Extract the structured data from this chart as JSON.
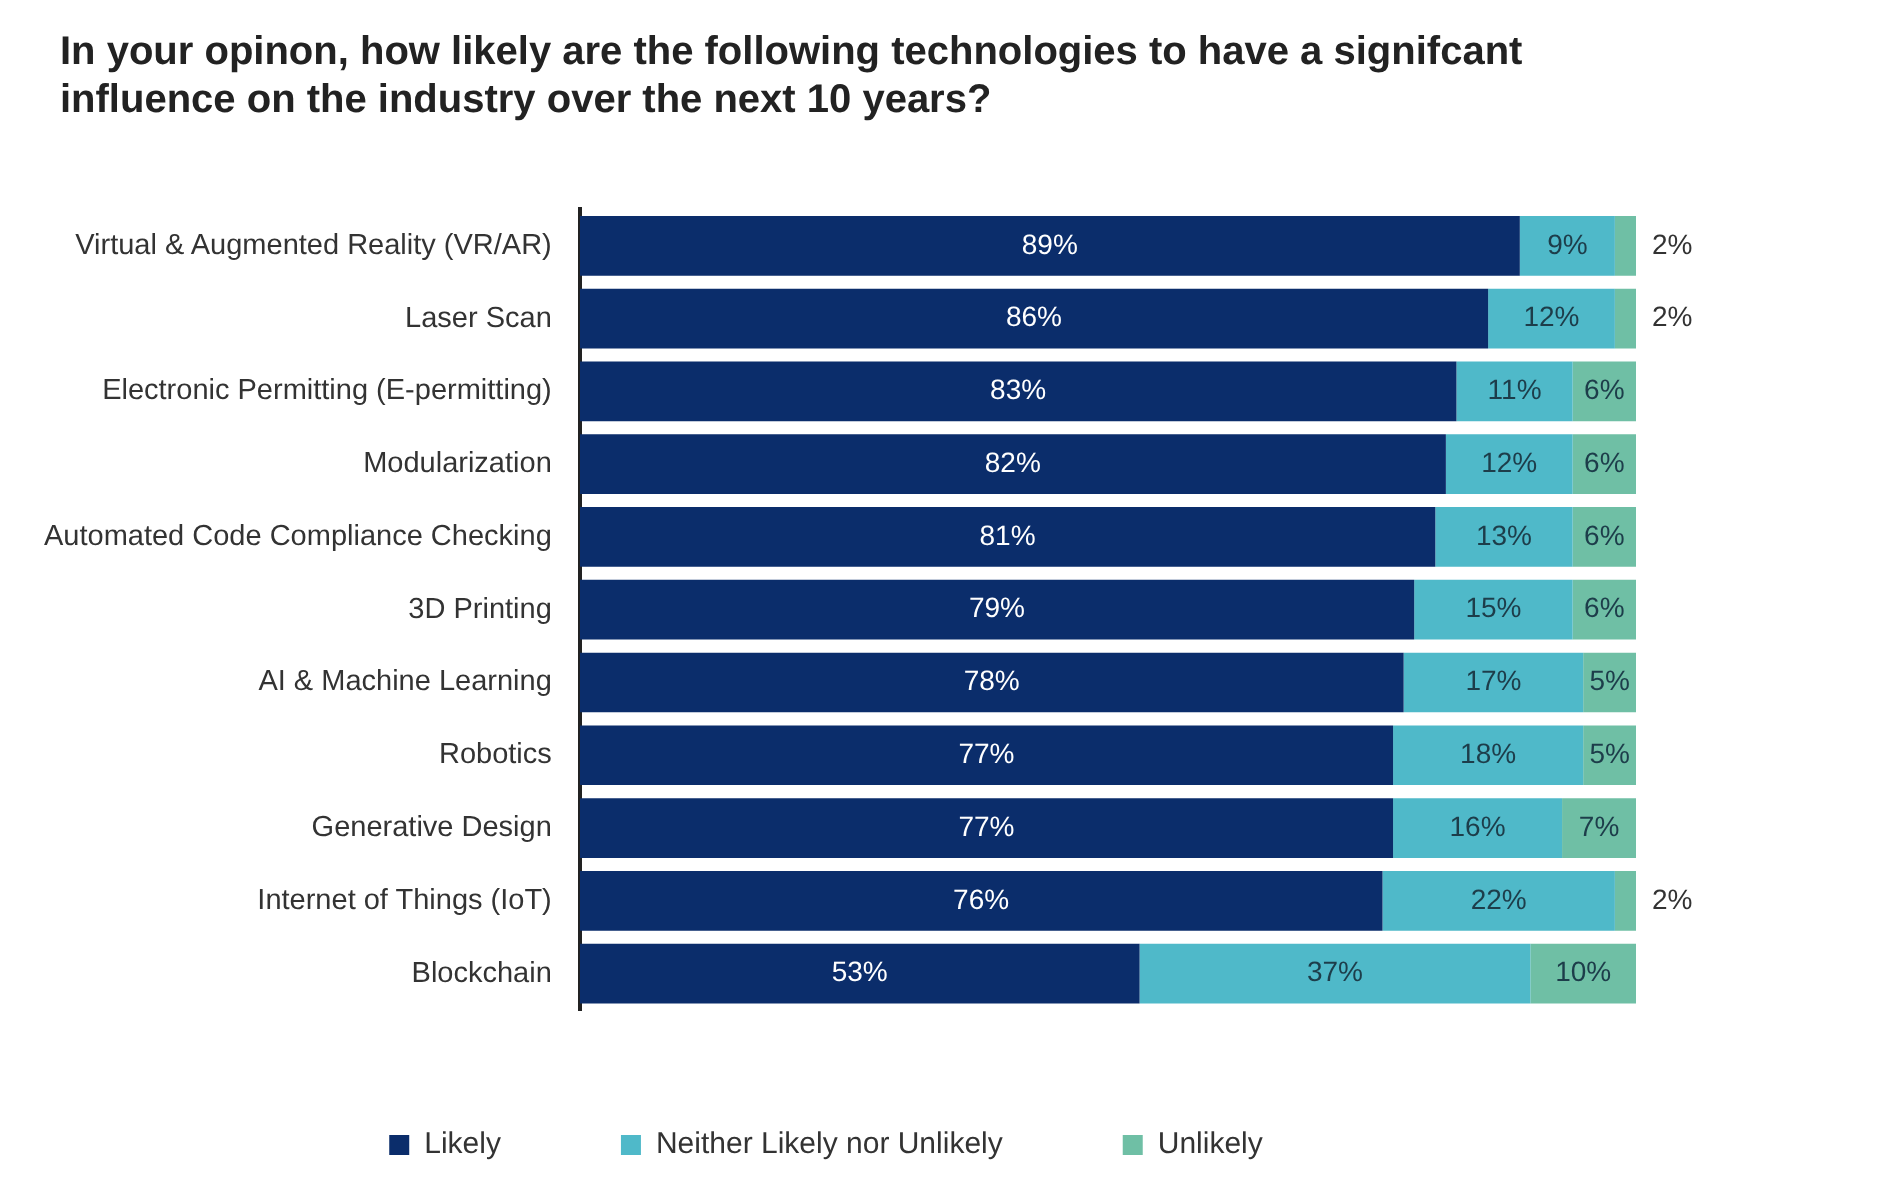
{
  "chart_data": {
    "type": "bar",
    "title": "In your opinon, how likely are the following technologies to have a signifcant influence on the industry over the next 10 years?",
    "orientation": "horizontal",
    "stacked": true,
    "legend": "bottom",
    "grid": false,
    "tick_labels": "y",
    "categories": [
      "Virtual & Augmented Reality (VR/AR)",
      "Laser Scan",
      "Electronic Permitting (E-permitting)",
      "Modularization",
      "Automated Code Compliance Checking",
      "3D Printing",
      "AI & Machine Learning",
      "Robotics",
      "Generative Design",
      "Internet of Things (IoT)",
      "Blockchain"
    ],
    "series": [
      {
        "name": "Likely",
        "color": "#0b2d6b",
        "values": [
          89,
          86,
          83,
          82,
          81,
          79,
          78,
          77,
          77,
          76,
          53
        ],
        "value_labels": [
          "89%",
          "86%",
          "83%",
          "82%",
          "81%",
          "79%",
          "78%",
          "77%",
          "77%",
          "76%",
          "53%"
        ]
      },
      {
        "name": "Neither Likely nor Unlikely",
        "color": "#4fb9c9",
        "values": [
          9,
          12,
          11,
          12,
          13,
          15,
          17,
          18,
          16,
          22,
          37
        ],
        "value_labels": [
          "9%",
          "12%",
          "11%",
          "12%",
          "13%",
          "15%",
          "17%",
          "18%",
          "16%",
          "22%",
          "37%"
        ]
      },
      {
        "name": "Unlikely",
        "color": "#6fbfa5",
        "values": [
          2,
          2,
          6,
          6,
          6,
          6,
          5,
          5,
          7,
          2,
          10
        ],
        "value_labels": [
          "2%",
          "2%",
          "6%",
          "6%",
          "6%",
          "6%",
          "5%",
          "5%",
          "7%",
          "2%",
          "10%"
        ]
      }
    ]
  }
}
